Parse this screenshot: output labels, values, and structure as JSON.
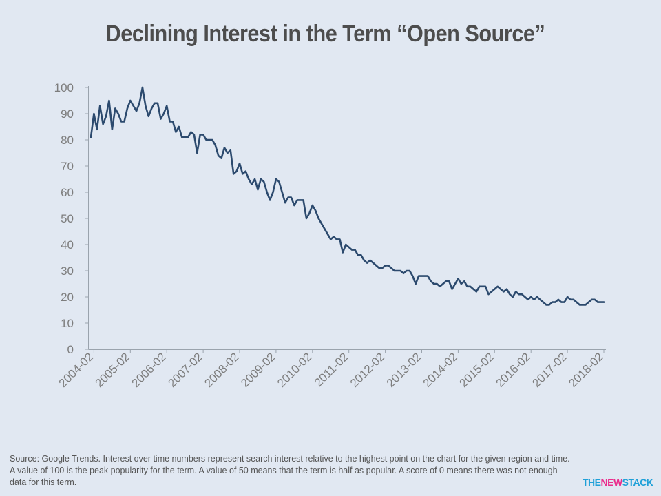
{
  "title": "Declining Interest in the Term “Open Source”",
  "source_note": "Source: Google Trends. Interest over time numbers represent search interest relative to the highest point on the chart for the given region and time. A value of 100 is the peak popularity  for the term. A value of 50 means that the term is half as popular.  A score of 0 means there was not enough data for this term.",
  "logo": {
    "part1": "THE",
    "part2": "NEW",
    "part3": "STACK"
  },
  "colors": {
    "background": "#e1e8f2",
    "line": "#2c4a6e",
    "axis": "#9aa3ad",
    "text": "#7d7d7d"
  },
  "chart_data": {
    "type": "line",
    "title": "Declining Interest in the Term “Open Source”",
    "xlabel": "",
    "ylabel": "",
    "ylim": [
      0,
      100
    ],
    "yticks": [
      0,
      10,
      20,
      30,
      40,
      50,
      60,
      70,
      80,
      90,
      100
    ],
    "xticks": [
      "2004-02",
      "2005-02",
      "2006-02",
      "2007-02",
      "2008-02",
      "2009-02",
      "2010-02",
      "2011-02",
      "2012-02",
      "2013-02",
      "2014-02",
      "2015-02",
      "2016-02",
      "2017-02",
      "2018-02"
    ],
    "grid": false,
    "series": [
      {
        "start": "2004-01",
        "values": [
          81,
          90,
          84,
          93,
          86,
          89,
          95,
          84,
          92,
          90,
          87,
          87,
          92,
          95,
          93,
          91,
          94,
          100,
          93,
          89,
          92,
          94,
          94,
          88,
          90,
          93,
          87,
          87,
          83,
          85,
          81,
          81,
          81,
          83,
          82,
          75,
          82,
          82,
          80,
          80,
          80,
          78,
          74,
          73,
          77,
          75,
          76,
          67,
          68,
          71,
          67,
          68,
          65,
          63,
          65,
          61,
          65,
          64,
          60,
          57,
          60,
          65,
          64,
          60,
          56,
          58,
          58,
          55,
          57,
          57,
          57,
          50,
          52,
          55,
          53,
          50,
          48,
          46,
          44,
          42,
          43,
          42,
          42,
          37,
          40,
          39,
          38,
          38,
          36,
          36,
          34,
          33,
          34,
          33,
          32,
          31,
          31,
          32,
          32,
          31,
          30,
          30,
          30,
          29,
          30,
          30,
          28,
          25,
          28,
          28,
          28,
          28,
          26,
          25,
          25,
          24,
          25,
          26,
          26,
          23,
          25,
          27,
          25,
          26,
          24,
          24,
          23,
          22,
          24,
          24,
          24,
          21,
          22,
          23,
          24,
          23,
          22,
          23,
          21,
          20,
          22,
          21,
          21,
          20,
          19,
          20,
          19,
          20,
          19,
          18,
          17,
          17,
          18,
          18,
          19,
          18,
          18,
          20,
          19,
          19,
          18,
          17,
          17,
          17,
          18,
          19,
          19,
          18,
          18,
          18
        ]
      }
    ]
  }
}
